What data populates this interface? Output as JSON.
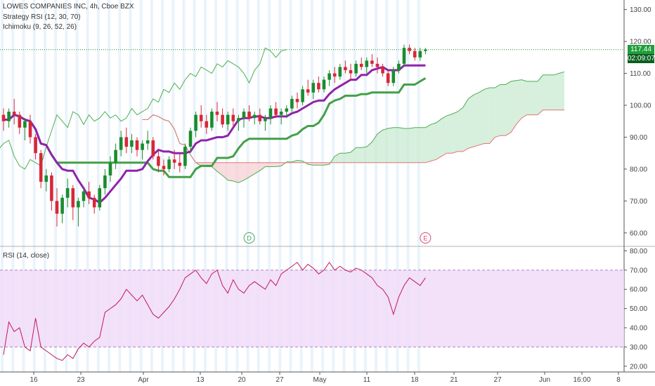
{
  "legend": {
    "line1": "LOWES COMPANIES INC, 4h, Cboe BZX",
    "line2": "Strategy RSI (12, 30, 70)",
    "line3": "Ichimoku (9, 26, 52, 26)",
    "rsi": "RSI (14, close)"
  },
  "price_tag": {
    "value": "117.44",
    "countdown": "02:09:07",
    "color": "#1f9e3a"
  },
  "events": [
    {
      "label": "D",
      "color": "#3ca55c"
    },
    {
      "label": "E",
      "color": "#e0457b"
    }
  ],
  "colors": {
    "up": "#1a8c2e",
    "down": "#d62839",
    "tenkan": "#8e24aa",
    "kijun": "#43a047",
    "cloud_bull": "#c9ead1",
    "cloud_bear": "#f6d0d4",
    "rsi_band": "#f0dcf8",
    "rsi_line": "#c2185b"
  },
  "chart_data": [
    {
      "type": "candlestick",
      "title": "LOWES COMPANIES INC, 4h, Cboe BZX",
      "x_ticks": [
        "16",
        "23",
        "Apr",
        "13",
        "20",
        "27",
        "May",
        "11",
        "18",
        "21",
        "27",
        "Jun",
        "16:00",
        "8"
      ],
      "y_ticks": [
        "60.00",
        "70.00",
        "80.00",
        "90.00",
        "100.00",
        "110.00",
        "120.00",
        "130.00"
      ],
      "ylim": [
        56,
        133
      ],
      "last_price": 117.44,
      "candles": [
        [
          97,
          99,
          92,
          95
        ],
        [
          95,
          99,
          93,
          98
        ],
        [
          98,
          102,
          94,
          97
        ],
        [
          97,
          98,
          91,
          93
        ],
        [
          93,
          96,
          89,
          95
        ],
        [
          95,
          97,
          88,
          90
        ],
        [
          90,
          91,
          83,
          85
        ],
        [
          85,
          86,
          74,
          76
        ],
        [
          76,
          80,
          73,
          78
        ],
        [
          78,
          79,
          67,
          70
        ],
        [
          70,
          74,
          62,
          66
        ],
        [
          66,
          72,
          63,
          71
        ],
        [
          71,
          77,
          68,
          74
        ],
        [
          74,
          75,
          64,
          68
        ],
        [
          68,
          71,
          62,
          70
        ],
        [
          70,
          74,
          68,
          73
        ],
        [
          73,
          76,
          69,
          71
        ],
        [
          71,
          72,
          66,
          68
        ],
        [
          68,
          75,
          67,
          74
        ],
        [
          74,
          80,
          72,
          78
        ],
        [
          78,
          84,
          76,
          82
        ],
        [
          82,
          88,
          80,
          86
        ],
        [
          86,
          92,
          84,
          90
        ],
        [
          90,
          93,
          85,
          87
        ],
        [
          87,
          91,
          85,
          89
        ],
        [
          89,
          90,
          84,
          86
        ],
        [
          86,
          89,
          83,
          88
        ],
        [
          88,
          92,
          86,
          89
        ],
        [
          89,
          90,
          83,
          84
        ],
        [
          84,
          86,
          79,
          81
        ],
        [
          81,
          83,
          78,
          80
        ],
        [
          80,
          84,
          79,
          83
        ],
        [
          83,
          86,
          80,
          82
        ],
        [
          82,
          85,
          79,
          81
        ],
        [
          81,
          88,
          80,
          87
        ],
        [
          87,
          93,
          85,
          92
        ],
        [
          92,
          98,
          90,
          97
        ],
        [
          97,
          100,
          93,
          95
        ],
        [
          95,
          97,
          91,
          93
        ],
        [
          93,
          99,
          92,
          98
        ],
        [
          98,
          101,
          95,
          97
        ],
        [
          97,
          99,
          93,
          94
        ],
        [
          94,
          98,
          92,
          97
        ],
        [
          97,
          99,
          93,
          95
        ],
        [
          95,
          97,
          92,
          96
        ],
        [
          96,
          99,
          93,
          98
        ],
        [
          98,
          100,
          95,
          96
        ],
        [
          96,
          98,
          94,
          97
        ],
        [
          97,
          99,
          94,
          95
        ],
        [
          95,
          97,
          92,
          96
        ],
        [
          96,
          100,
          94,
          99
        ],
        [
          99,
          101,
          96,
          97
        ],
        [
          97,
          99,
          94,
          98
        ],
        [
          98,
          100,
          96,
          99
        ],
        [
          99,
          103,
          98,
          102
        ],
        [
          102,
          104,
          99,
          101
        ],
        [
          101,
          106,
          100,
          105
        ],
        [
          105,
          108,
          103,
          104
        ],
        [
          104,
          108,
          102,
          107
        ],
        [
          107,
          109,
          104,
          105
        ],
        [
          105,
          109,
          104,
          108
        ],
        [
          108,
          111,
          106,
          110
        ],
        [
          110,
          112,
          107,
          109
        ],
        [
          109,
          113,
          108,
          112
        ],
        [
          112,
          114,
          110,
          111
        ],
        [
          111,
          113,
          108,
          110
        ],
        [
          110,
          114,
          109,
          113
        ],
        [
          113,
          115,
          111,
          112
        ],
        [
          112,
          115,
          110,
          114
        ],
        [
          114,
          116,
          112,
          113
        ],
        [
          113,
          115,
          110,
          112
        ],
        [
          112,
          113,
          109,
          110
        ],
        [
          110,
          111,
          106,
          107
        ],
        [
          107,
          112,
          106,
          111
        ],
        [
          111,
          114,
          110,
          113
        ],
        [
          113,
          119,
          112,
          118
        ],
        [
          118,
          119,
          116,
          117
        ],
        [
          117,
          118,
          114,
          115
        ],
        [
          115,
          118,
          114,
          117
        ],
        [
          117,
          118,
          116,
          117.44
        ]
      ]
    },
    {
      "type": "line",
      "title": "RSI (14, close)",
      "y_ticks": [
        "20.00",
        "30.00",
        "40.00",
        "50.00",
        "60.00",
        "70.00",
        "80.00"
      ],
      "ylim": [
        17,
        82
      ],
      "bands": [
        30,
        70
      ],
      "values": [
        26,
        43,
        38,
        40,
        30,
        28,
        45,
        30,
        28,
        26,
        24,
        23,
        26,
        24,
        29,
        32,
        30,
        33,
        35,
        48,
        50,
        52,
        55,
        60,
        57,
        54,
        57,
        52,
        47,
        45,
        48,
        51,
        55,
        60,
        66,
        68,
        70,
        66,
        63,
        68,
        70,
        62,
        58,
        65,
        60,
        58,
        62,
        64,
        62,
        60,
        65,
        62,
        68,
        70,
        72,
        74,
        70,
        73,
        71,
        68,
        70,
        74,
        70,
        72,
        70,
        69,
        71,
        70,
        68,
        66,
        62,
        60,
        56,
        47,
        56,
        62,
        66,
        64,
        62,
        66
      ]
    }
  ]
}
